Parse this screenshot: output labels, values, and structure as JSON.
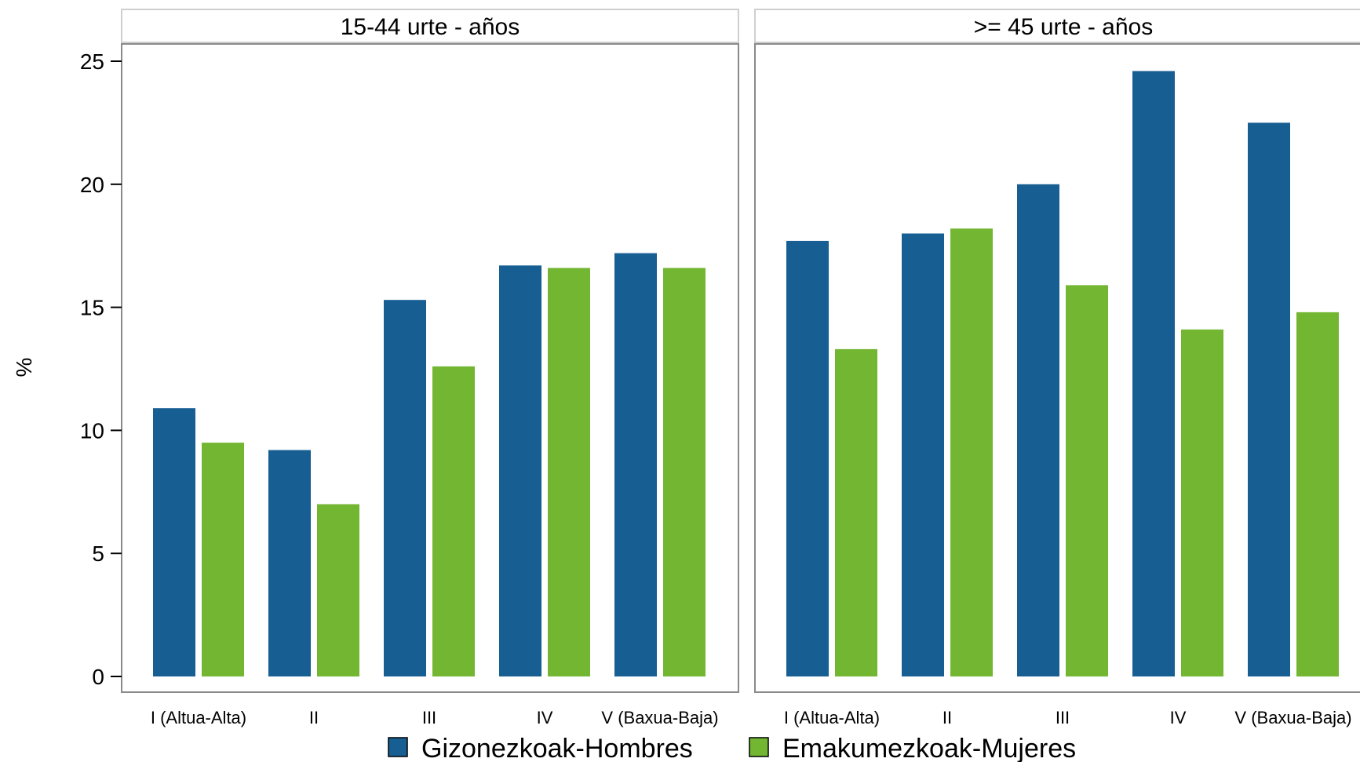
{
  "chart_data": {
    "type": "bar",
    "ylabel": "%",
    "ylim": [
      0,
      25
    ],
    "yticks": [
      0,
      5,
      10,
      15,
      20,
      25
    ],
    "categories": [
      "I (Altua-Alta)",
      "II",
      "III",
      "IV",
      "V (Baxua-Baja)"
    ],
    "legend_position": "bottom",
    "grid": false,
    "colors": {
      "Gizonezkoak-Hombres": "#175e93",
      "Emakumezkoak-Mujeres": "#72b632"
    },
    "panels": [
      {
        "title": "15-44 urte - años",
        "series": [
          {
            "name": "Gizonezkoak-Hombres",
            "values": [
              10.9,
              9.2,
              15.3,
              16.7,
              17.2
            ]
          },
          {
            "name": "Emakumezkoak-Mujeres",
            "values": [
              9.5,
              7.0,
              12.6,
              16.6,
              16.6
            ]
          }
        ]
      },
      {
        "title": ">= 45 urte - años",
        "series": [
          {
            "name": "Gizonezkoak-Hombres",
            "values": [
              17.7,
              18.0,
              20.0,
              24.6,
              22.5
            ]
          },
          {
            "name": "Emakumezkoak-Mujeres",
            "values": [
              13.3,
              18.2,
              15.9,
              14.1,
              14.8
            ]
          }
        ]
      }
    ]
  }
}
